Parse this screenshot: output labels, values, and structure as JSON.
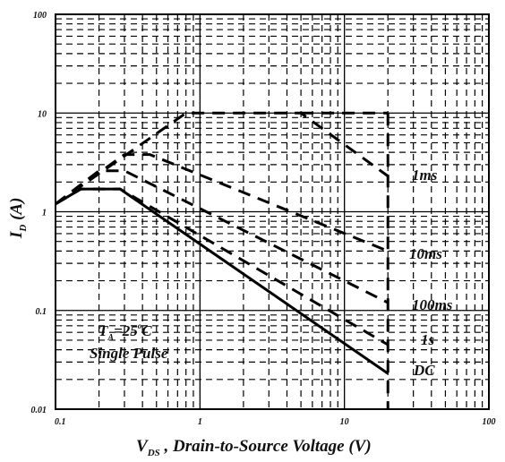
{
  "chart_data": {
    "type": "line",
    "xscale": "log",
    "yscale": "log",
    "xlim": [
      0.1,
      100
    ],
    "ylim": [
      0.01,
      100
    ],
    "grid": true,
    "x_ticks": [
      {
        "value": 0.1,
        "label": "0.1"
      },
      {
        "value": 1,
        "label": "1"
      },
      {
        "value": 10,
        "label": "10"
      },
      {
        "value": 100,
        "label": "100"
      }
    ],
    "y_ticks": [
      {
        "value": 100,
        "label": "100"
      },
      {
        "value": 10,
        "label": "10"
      },
      {
        "value": 1,
        "label": "1"
      },
      {
        "value": 0.1,
        "label": "0.1"
      },
      {
        "value": 0.01,
        "label": "0.01"
      }
    ],
    "xlabel": {
      "main": "V",
      "sub": "DS",
      "rest": " , Drain-to-Source Voltage (V)"
    },
    "ylabel": {
      "main": "I",
      "sub": "D",
      "rest": " (A)"
    },
    "annotation": {
      "line1": "T",
      "line1_sub": "A",
      "line1_rest": "=25",
      "line1_deg": "o",
      "line1_unit": "C",
      "line2": "Single Pulse"
    },
    "limit": {
      "vds_max": 20,
      "id_max": 10
    },
    "series": [
      {
        "name": "1ms",
        "dash": true,
        "points": [
          [
            0.1,
            1.2
          ],
          [
            0.8,
            10
          ],
          [
            5,
            10
          ],
          [
            20,
            2.3
          ]
        ]
      },
      {
        "name": "10ms",
        "dash": true,
        "points": [
          [
            0.1,
            1.2
          ],
          [
            0.3,
            3.8
          ],
          [
            0.45,
            3.8
          ],
          [
            20,
            0.4
          ]
        ]
      },
      {
        "name": "100ms",
        "dash": true,
        "points": [
          [
            0.1,
            1.2
          ],
          [
            0.2,
            2.6
          ],
          [
            0.3,
            2.6
          ],
          [
            20,
            0.12
          ]
        ]
      },
      {
        "name": "1s",
        "dash": true,
        "points": [
          [
            0.1,
            1.2
          ],
          [
            0.15,
            1.7
          ],
          [
            0.28,
            1.7
          ],
          [
            20,
            0.045
          ]
        ]
      },
      {
        "name": "DC",
        "dash": false,
        "points": [
          [
            0.1,
            1.2
          ],
          [
            0.15,
            1.7
          ],
          [
            0.28,
            1.7
          ],
          [
            20,
            0.023
          ]
        ]
      }
    ]
  }
}
